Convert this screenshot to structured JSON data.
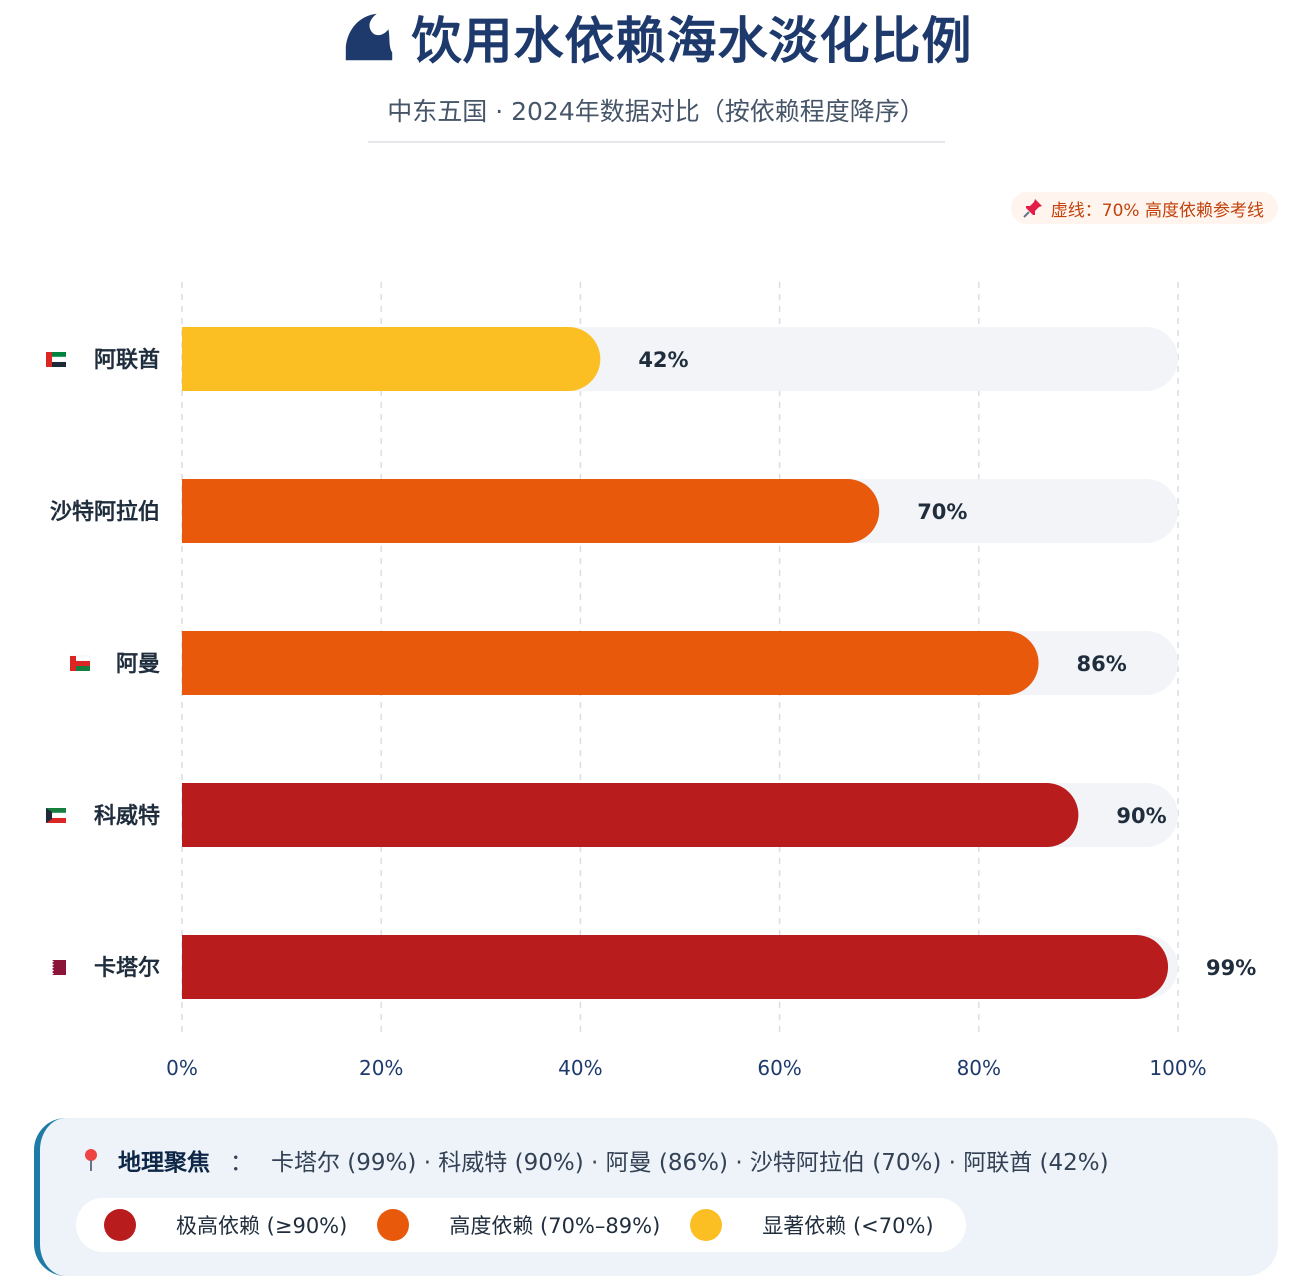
{
  "header": {
    "title": "饮用水依赖海水淡化比例",
    "title_icon": "wave-icon",
    "subtitle": "中东五国 · 2024年数据对比（按依赖程度降序）"
  },
  "reference": {
    "label": "虚线：70% 高度依赖参考线",
    "icon": "pushpin-icon",
    "value": 70
  },
  "chart_data": {
    "type": "bar",
    "orientation": "horizontal",
    "categories": [
      "阿联酋",
      "沙特阿拉伯",
      "阿曼",
      "科威特",
      "卡塔尔"
    ],
    "values": [
      42,
      70,
      86,
      90,
      99
    ],
    "value_labels": [
      "42%",
      "70%",
      "86%",
      "90%",
      "99%"
    ],
    "flags": [
      "uae-flag-icon",
      "",
      "oman-flag-icon",
      "kuwait-flag-icon",
      "qatar-flag-icon"
    ],
    "xlim": [
      0,
      100
    ],
    "xticks": [
      "0%",
      "20%",
      "40%",
      "60%",
      "80%",
      "100%"
    ],
    "grid": true,
    "colors": {
      "very_high": "#b91c1c",
      "high": "#e8590c",
      "significant": "#fbbf24",
      "track": "#f2f4f7"
    }
  },
  "footer": {
    "geo_label": "地理聚焦",
    "geo_icon": "location-pin-icon",
    "geo_sep": "：",
    "geo_text": "卡塔尔 (99%) · 科威特 (90%) · 阿曼 (86%) · 沙特阿拉伯 (70%) · 阿联酋 (42%)",
    "legend": [
      {
        "label": "极高依赖 (≥90%)",
        "color": "#b91c1c"
      },
      {
        "label": "高度依赖 (70%–89%)",
        "color": "#e8590c"
      },
      {
        "label": "显著依赖 (<70%)",
        "color": "#fbbf24"
      }
    ]
  }
}
